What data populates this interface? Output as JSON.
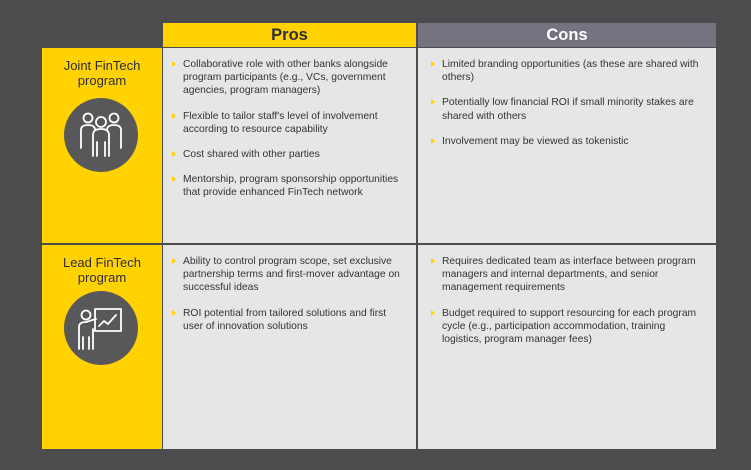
{
  "headers": {
    "pros": "Pros",
    "cons": "Cons"
  },
  "rows": [
    {
      "label": "Joint FinTech program",
      "icon": "group-of-people-icon",
      "pros": [
        "Collaborative role with other banks alongside program participants (e.g., VCs, government agencies, program managers)",
        "Flexible to tailor staff's level of involvement according to resource capability",
        "Cost shared with other parties",
        "Mentorship, program sponsorship opportunities that provide enhanced FinTech network"
      ],
      "cons": [
        "Limited branding opportunities (as these are shared with others)",
        "Potentially low financial ROI if small minority stakes are shared with others",
        "Involvement may be viewed as tokenistic"
      ]
    },
    {
      "label": "Lead FinTech program",
      "icon": "presenter-at-chart-icon",
      "pros": [
        "Ability to control program scope, set exclusive partnership terms and first-mover advantage on successful ideas",
        "ROI potential from tailored solutions and first user of innovation solutions"
      ],
      "cons": [
        "Requires dedicated team as interface between program managers and internal departments, and senior management requirements",
        "Budget required to support resourcing for each program cycle (e.g., participation accommodation, training logistics, program manager fees)"
      ]
    }
  ],
  "colors": {
    "yellow": "#ffd200",
    "gray_header": "#747480",
    "cell_bg": "#e6e6e6",
    "page_bg": "#4c4c4e",
    "icon_circle": "#58585a"
  }
}
